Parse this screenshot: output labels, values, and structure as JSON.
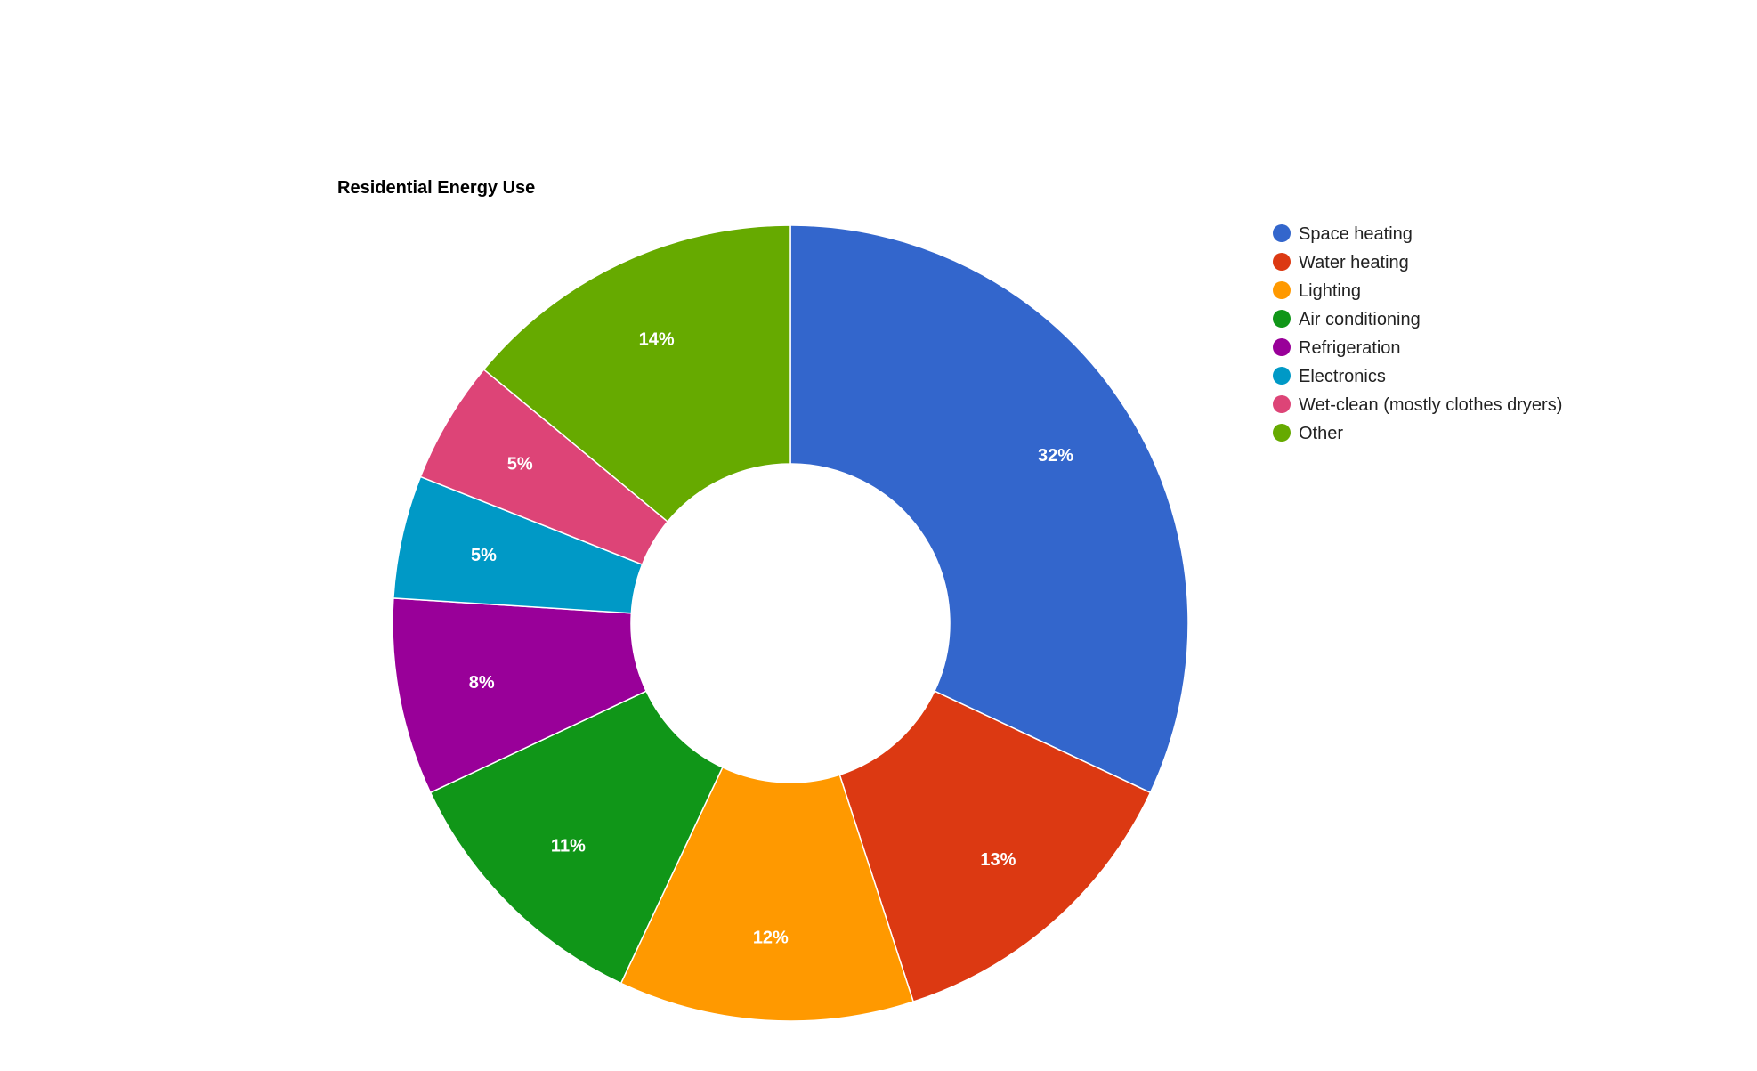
{
  "chart_data": {
    "type": "pie",
    "title": "Residential Energy Use",
    "donut": true,
    "legend_position": "right",
    "label_format": "percent",
    "slices": [
      {
        "name": "Space heating",
        "value": 32,
        "label": "32%",
        "color": "#3366cc"
      },
      {
        "name": "Water heating",
        "value": 13,
        "label": "13%",
        "color": "#dc3912"
      },
      {
        "name": "Lighting",
        "value": 12,
        "label": "12%",
        "color": "#ff9900"
      },
      {
        "name": "Air conditioning",
        "value": 11,
        "label": "11%",
        "color": "#109618"
      },
      {
        "name": "Refrigeration",
        "value": 8,
        "label": "8%",
        "color": "#990099"
      },
      {
        "name": "Electronics",
        "value": 5,
        "label": "5%",
        "color": "#0099c6"
      },
      {
        "name": "Wet-clean (mostly clothes dryers)",
        "value": 5,
        "label": "5%",
        "color": "#dd4477"
      },
      {
        "name": "Other",
        "value": 14,
        "label": "14%",
        "color": "#66aa00"
      }
    ]
  }
}
